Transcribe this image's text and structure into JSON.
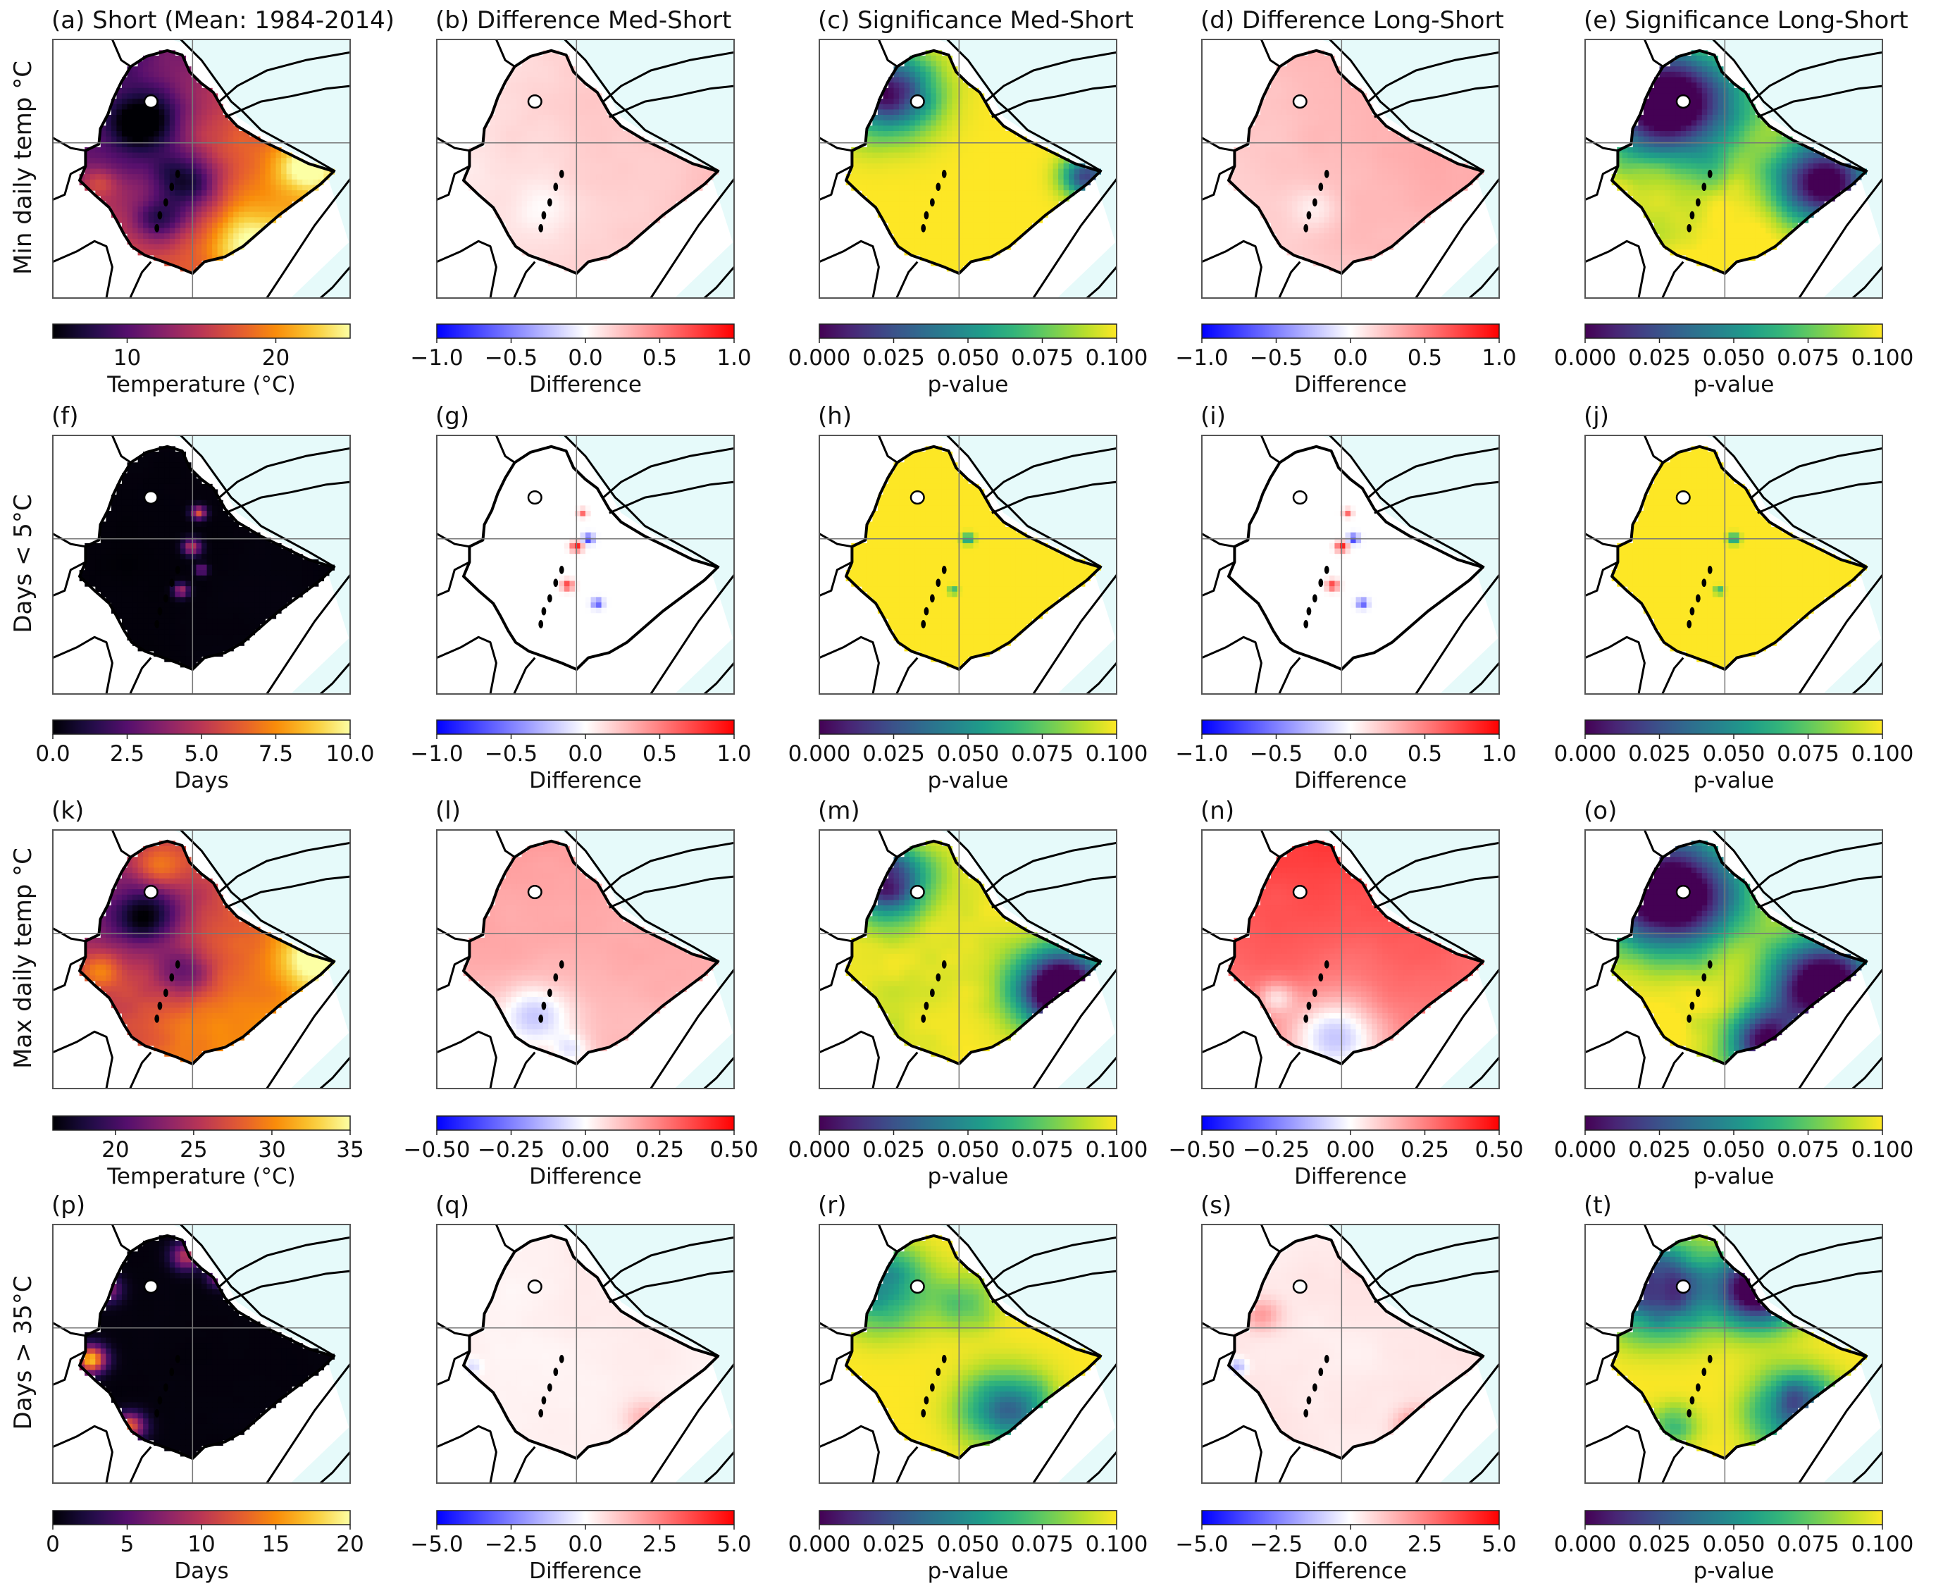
{
  "figure": {
    "row_labels": [
      "Min daily temp $^\\circ$C",
      "Days < 5$^\\circ$C",
      "Max daily temp $^\\circ$C",
      "Days > 35$^\\circ$C"
    ],
    "row_labels_display": [
      "Min daily temp °C",
      "Days < 5°C",
      "Max daily temp °C",
      "Days > 35°C"
    ]
  },
  "colors": {
    "sea": "#e6fafa",
    "land_outside": "#ffffff",
    "border": "#000000"
  },
  "panels": [
    {
      "id": "a",
      "title": "(a) Short (Mean: 1984-2014)",
      "kind": "inferno",
      "pattern": "minT",
      "cbar": {
        "ticks": [
          "10",
          "20"
        ],
        "label": "Temperature ($^\\circ$C)",
        "label_display": "Temperature (°C)",
        "vmin": 5,
        "vmax": 25,
        "tickvals": [
          10,
          20
        ]
      }
    },
    {
      "id": "b",
      "title": "(b) Difference Med-Short",
      "kind": "bwr",
      "pattern": "diffMinMed",
      "cbar": {
        "ticks": [
          "−1.0",
          "−0.5",
          "0.0",
          "0.5",
          "1.0"
        ],
        "label": "Difference",
        "vmin": -1,
        "vmax": 1,
        "tickvals": [
          -1,
          -0.5,
          0,
          0.5,
          1
        ]
      }
    },
    {
      "id": "c",
      "title": "(c) Significance Med-Short",
      "kind": "viridis",
      "pattern": "sigMinMed",
      "cbar": {
        "ticks": [
          "0.000",
          "0.025",
          "0.050",
          "0.075",
          "0.100"
        ],
        "label": "p-value",
        "vmin": 0,
        "vmax": 0.1,
        "tickvals": [
          0,
          0.025,
          0.05,
          0.075,
          0.1
        ]
      }
    },
    {
      "id": "d",
      "title": "(d) Difference Long-Short",
      "kind": "bwr",
      "pattern": "diffMinLong",
      "cbar": {
        "ticks": [
          "−1.0",
          "−0.5",
          "0.0",
          "0.5",
          "1.0"
        ],
        "label": "Difference",
        "vmin": -1,
        "vmax": 1,
        "tickvals": [
          -1,
          -0.5,
          0,
          0.5,
          1
        ]
      }
    },
    {
      "id": "e",
      "title": "(e) Significance Long-Short",
      "kind": "viridis",
      "pattern": "sigMinLong",
      "cbar": {
        "ticks": [
          "0.000",
          "0.025",
          "0.050",
          "0.075",
          "0.100"
        ],
        "label": "p-value",
        "vmin": 0,
        "vmax": 0.1,
        "tickvals": [
          0,
          0.025,
          0.05,
          0.075,
          0.1
        ]
      }
    },
    {
      "id": "f",
      "title": "(f)",
      "kind": "inferno",
      "pattern": "cold",
      "cbar": {
        "ticks": [
          "0.0",
          "2.5",
          "5.0",
          "7.5",
          "10.0"
        ],
        "label": "Days",
        "vmin": 0,
        "vmax": 10,
        "tickvals": [
          0,
          2.5,
          5,
          7.5,
          10
        ]
      }
    },
    {
      "id": "g",
      "title": "(g)",
      "kind": "bwr",
      "pattern": "coldDiff",
      "cbar": {
        "ticks": [
          "−1.0",
          "−0.5",
          "0.0",
          "0.5",
          "1.0"
        ],
        "label": "Difference",
        "vmin": -1,
        "vmax": 1,
        "tickvals": [
          -1,
          -0.5,
          0,
          0.5,
          1
        ]
      }
    },
    {
      "id": "h",
      "title": "(h)",
      "kind": "viridis",
      "pattern": "sigAllHigh",
      "cbar": {
        "ticks": [
          "0.000",
          "0.025",
          "0.050",
          "0.075",
          "0.100"
        ],
        "label": "p-value",
        "vmin": 0,
        "vmax": 0.1,
        "tickvals": [
          0,
          0.025,
          0.05,
          0.075,
          0.1
        ]
      }
    },
    {
      "id": "i",
      "title": "(i)",
      "kind": "bwr",
      "pattern": "coldDiff",
      "cbar": {
        "ticks": [
          "−1.0",
          "−0.5",
          "0.0",
          "0.5",
          "1.0"
        ],
        "label": "Difference",
        "vmin": -1,
        "vmax": 1,
        "tickvals": [
          -1,
          -0.5,
          0,
          0.5,
          1
        ]
      }
    },
    {
      "id": "j",
      "title": "(j)",
      "kind": "viridis",
      "pattern": "sigAllHigh",
      "cbar": {
        "ticks": [
          "0.000",
          "0.025",
          "0.050",
          "0.075",
          "0.100"
        ],
        "label": "p-value",
        "vmin": 0,
        "vmax": 0.1,
        "tickvals": [
          0,
          0.025,
          0.05,
          0.075,
          0.1
        ]
      }
    },
    {
      "id": "k",
      "title": "(k)",
      "kind": "inferno",
      "pattern": "maxT",
      "cbar": {
        "ticks": [
          "20",
          "25",
          "30",
          "35"
        ],
        "label": "Temperature ($^\\circ$C)",
        "label_display": "Temperature (°C)",
        "vmin": 16,
        "vmax": 35,
        "tickvals": [
          20,
          25,
          30,
          35
        ]
      }
    },
    {
      "id": "l",
      "title": "(l)",
      "kind": "bwr",
      "pattern": "diffMaxMed",
      "cbar": {
        "ticks": [
          "−0.50",
          "−0.25",
          "0.00",
          "0.25",
          "0.50"
        ],
        "label": "Difference",
        "vmin": -0.5,
        "vmax": 0.5,
        "tickvals": [
          -0.5,
          -0.25,
          0,
          0.25,
          0.5
        ]
      }
    },
    {
      "id": "m",
      "title": "(m)",
      "kind": "viridis",
      "pattern": "sigMaxMed",
      "cbar": {
        "ticks": [
          "0.000",
          "0.025",
          "0.050",
          "0.075",
          "0.100"
        ],
        "label": "p-value",
        "vmin": 0,
        "vmax": 0.1,
        "tickvals": [
          0,
          0.025,
          0.05,
          0.075,
          0.1
        ]
      }
    },
    {
      "id": "n",
      "title": "(n)",
      "kind": "bwr",
      "pattern": "diffMaxLong",
      "cbar": {
        "ticks": [
          "−0.50",
          "−0.25",
          "0.00",
          "0.25",
          "0.50"
        ],
        "label": "Difference",
        "vmin": -0.5,
        "vmax": 0.5,
        "tickvals": [
          -0.5,
          -0.25,
          0,
          0.25,
          0.5
        ]
      }
    },
    {
      "id": "o",
      "title": "(o)",
      "kind": "viridis",
      "pattern": "sigMaxLong",
      "cbar": {
        "ticks": [
          "0.000",
          "0.025",
          "0.050",
          "0.075",
          "0.100"
        ],
        "label": "p-value",
        "vmin": 0,
        "vmax": 0.1,
        "tickvals": [
          0,
          0.025,
          0.05,
          0.075,
          0.1
        ]
      }
    },
    {
      "id": "p",
      "title": "(p)",
      "kind": "inferno",
      "pattern": "hot",
      "cbar": {
        "ticks": [
          "0",
          "5",
          "10",
          "15",
          "20"
        ],
        "label": "Days",
        "vmin": 0,
        "vmax": 20,
        "tickvals": [
          0,
          5,
          10,
          15,
          20
        ]
      }
    },
    {
      "id": "q",
      "title": "(q)",
      "kind": "bwr",
      "pattern": "hotDiffMed",
      "cbar": {
        "ticks": [
          "−5.0",
          "−2.5",
          "0.0",
          "2.5",
          "5.0"
        ],
        "label": "Difference",
        "vmin": -5,
        "vmax": 5,
        "tickvals": [
          -5,
          -2.5,
          0,
          2.5,
          5
        ]
      }
    },
    {
      "id": "r",
      "title": "(r)",
      "kind": "viridis",
      "pattern": "sigHotMed",
      "cbar": {
        "ticks": [
          "0.000",
          "0.025",
          "0.050",
          "0.075",
          "0.100"
        ],
        "label": "p-value",
        "vmin": 0,
        "vmax": 0.1,
        "tickvals": [
          0,
          0.025,
          0.05,
          0.075,
          0.1
        ]
      }
    },
    {
      "id": "s",
      "title": "(s)",
      "kind": "bwr",
      "pattern": "hotDiffLong",
      "cbar": {
        "ticks": [
          "−5.0",
          "−2.5",
          "0.0",
          "2.5",
          "5.0"
        ],
        "label": "Difference",
        "vmin": -5,
        "vmax": 5,
        "tickvals": [
          -5,
          -2.5,
          0,
          2.5,
          5
        ]
      }
    },
    {
      "id": "t",
      "title": "(t)",
      "kind": "viridis",
      "pattern": "sigHotLong",
      "cbar": {
        "ticks": [
          "0.000",
          "0.025",
          "0.050",
          "0.075",
          "0.100"
        ],
        "label": "p-value",
        "vmin": 0,
        "vmax": 0.1,
        "tickvals": [
          0,
          0.025,
          0.05,
          0.075,
          0.1
        ]
      }
    }
  ]
}
